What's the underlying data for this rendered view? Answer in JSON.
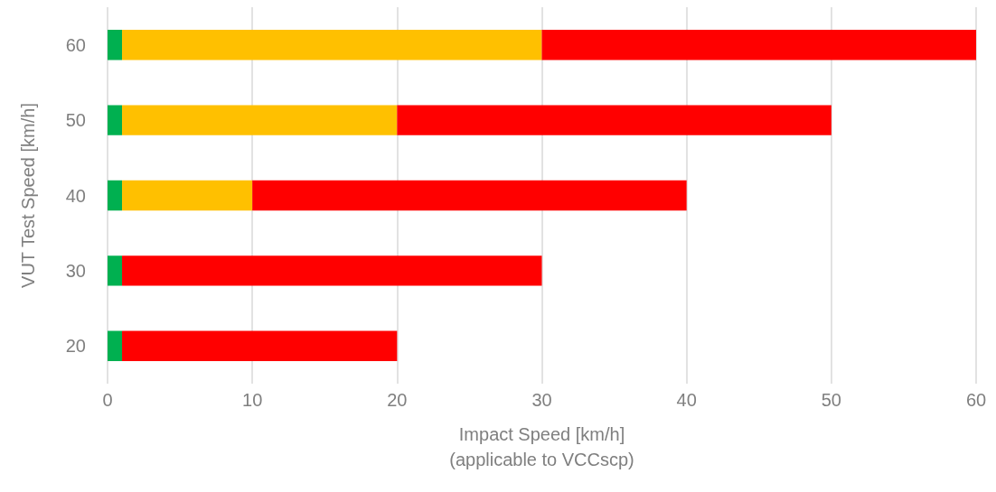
{
  "chart_data": {
    "type": "bar",
    "orientation": "horizontal",
    "stacked": true,
    "categories": [
      "60",
      "50",
      "40",
      "30",
      "20"
    ],
    "series": [
      {
        "color": "#00b050",
        "values": [
          1,
          1,
          1,
          1,
          1
        ]
      },
      {
        "color": "#ffc000",
        "values": [
          29,
          19,
          9,
          0,
          0
        ]
      },
      {
        "color": "#ff0000",
        "values": [
          30,
          30,
          30,
          29,
          19
        ]
      }
    ],
    "xlabel": "Impact Speed [km/h]\n(applicable to VCCscp)",
    "ylabel": "VUT Test Speed [km/h]",
    "xlim": [
      0,
      60
    ],
    "xticks": [
      0,
      10,
      20,
      30,
      40,
      50,
      60
    ],
    "grid": "x"
  }
}
